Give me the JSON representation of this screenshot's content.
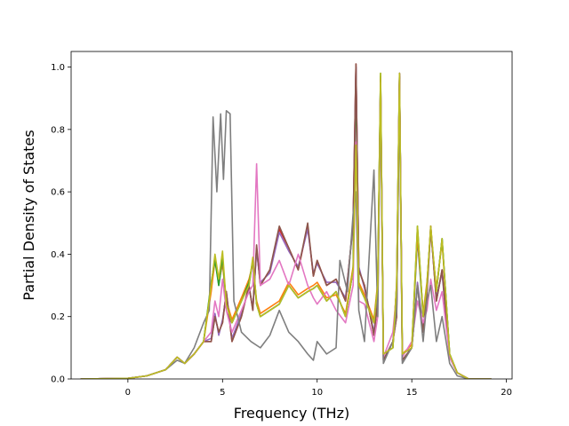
{
  "chart_data": {
    "type": "line",
    "title": "",
    "xlabel": "Frequency (THz)",
    "ylabel": "Partial Density of States",
    "xlim": [
      -3.0,
      20.3
    ],
    "ylim": [
      0.0,
      1.05
    ],
    "xticks": [
      0,
      5,
      10,
      15,
      20
    ],
    "yticks": [
      0.0,
      0.2,
      0.4,
      0.6,
      0.8,
      1.0
    ],
    "xtick_labels": [
      "0",
      "5",
      "10",
      "15",
      "20"
    ],
    "ytick_labels": [
      "0.0",
      "0.2",
      "0.4",
      "0.6",
      "0.8",
      "1.0"
    ],
    "grid": false,
    "legend": "none",
    "series": [
      {
        "color": "#1f77b4",
        "x": [
          -2.5,
          0,
          1,
          2,
          2.6,
          3,
          3.5,
          4,
          4.4,
          4.6,
          4.8,
          5,
          5.2,
          5.5,
          6,
          6.4,
          6.6,
          6.8,
          7,
          7.5,
          8,
          8.5,
          9,
          9.5,
          9.8,
          10,
          10.5,
          11,
          11.5,
          11.9,
          12.05,
          12.2,
          12.5,
          13,
          13.2,
          13.35,
          13.5,
          14,
          14.2,
          14.35,
          14.5,
          15,
          15.3,
          15.6,
          15.8,
          16,
          16.3,
          16.6,
          17,
          17.4,
          18,
          19.2
        ],
        "y": [
          0,
          0.002,
          0.01,
          0.03,
          0.07,
          0.05,
          0.08,
          0.12,
          0.3,
          0.39,
          0.3,
          0.38,
          0.24,
          0.18,
          0.25,
          0.3,
          0.38,
          0.24,
          0.2,
          0.22,
          0.24,
          0.3,
          0.26,
          0.28,
          0.29,
          0.3,
          0.25,
          0.28,
          0.2,
          0.35,
          1.0,
          0.3,
          0.26,
          0.18,
          0.3,
          0.97,
          0.08,
          0.1,
          0.3,
          0.98,
          0.08,
          0.1,
          0.45,
          0.2,
          0.3,
          0.48,
          0.28,
          0.45,
          0.08,
          0.02,
          0,
          0
        ]
      },
      {
        "color": "#ff7f0e",
        "x": [
          -2.5,
          0,
          1,
          2,
          2.6,
          3,
          3.5,
          4,
          4.4,
          4.6,
          4.8,
          5,
          5.2,
          5.5,
          6,
          6.4,
          6.6,
          6.8,
          7,
          7.5,
          8,
          8.5,
          9,
          9.5,
          9.8,
          10,
          10.5,
          11,
          11.5,
          11.9,
          12.05,
          12.2,
          12.5,
          13,
          13.2,
          13.35,
          13.5,
          14,
          14.2,
          14.35,
          14.5,
          15,
          15.3,
          15.6,
          15.8,
          16,
          16.3,
          16.6,
          17,
          17.4,
          18,
          19.2
        ],
        "y": [
          0,
          0.002,
          0.01,
          0.03,
          0.07,
          0.05,
          0.08,
          0.12,
          0.28,
          0.38,
          0.31,
          0.37,
          0.25,
          0.19,
          0.26,
          0.32,
          0.37,
          0.25,
          0.21,
          0.23,
          0.25,
          0.31,
          0.27,
          0.29,
          0.3,
          0.31,
          0.26,
          0.27,
          0.21,
          0.36,
          0.99,
          0.31,
          0.27,
          0.19,
          0.31,
          0.97,
          0.08,
          0.1,
          0.31,
          0.97,
          0.08,
          0.11,
          0.46,
          0.21,
          0.31,
          0.47,
          0.29,
          0.44,
          0.08,
          0.02,
          0,
          0
        ]
      },
      {
        "color": "#2ca02c",
        "x": [
          -2.5,
          0,
          1,
          2,
          2.6,
          3,
          3.5,
          4,
          4.4,
          4.6,
          4.8,
          5,
          5.2,
          5.5,
          6,
          6.4,
          6.6,
          6.8,
          7,
          7.5,
          8,
          8.5,
          9,
          9.5,
          9.8,
          10,
          10.5,
          11,
          11.5,
          11.9,
          12.05,
          12.2,
          12.5,
          13,
          13.2,
          13.35,
          13.5,
          14,
          14.2,
          14.35,
          14.5,
          15,
          15.3,
          15.6,
          15.8,
          16,
          16.3,
          16.6,
          17,
          17.4,
          18,
          19.2
        ],
        "y": [
          0,
          0.002,
          0.01,
          0.03,
          0.07,
          0.05,
          0.08,
          0.12,
          0.31,
          0.38,
          0.3,
          0.39,
          0.24,
          0.18,
          0.25,
          0.31,
          0.38,
          0.24,
          0.2,
          0.22,
          0.24,
          0.3,
          0.26,
          0.28,
          0.29,
          0.3,
          0.25,
          0.28,
          0.2,
          0.35,
          0.98,
          0.3,
          0.26,
          0.18,
          0.3,
          0.98,
          0.08,
          0.1,
          0.3,
          0.97,
          0.08,
          0.1,
          0.49,
          0.2,
          0.3,
          0.48,
          0.28,
          0.45,
          0.08,
          0.02,
          0,
          0
        ]
      },
      {
        "color": "#d62728",
        "x": [
          -2.5,
          0,
          1,
          2,
          2.6,
          3,
          3.5,
          4,
          4.4,
          4.6,
          4.8,
          5,
          5.2,
          5.5,
          6,
          6.4,
          6.6,
          6.8,
          7,
          7.5,
          8,
          8.5,
          9,
          9.5,
          9.8,
          10,
          10.5,
          11,
          11.5,
          11.9,
          12.05,
          12.2,
          12.5,
          13,
          13.2,
          13.35,
          13.5,
          14,
          14.2,
          14.35,
          14.5,
          15,
          15.3,
          15.6,
          15.8,
          16,
          16.3,
          16.6,
          17,
          17.4,
          18,
          19.2
        ],
        "y": [
          0,
          0.002,
          0.01,
          0.03,
          0.07,
          0.05,
          0.08,
          0.12,
          0.12,
          0.2,
          0.15,
          0.18,
          0.28,
          0.12,
          0.2,
          0.3,
          0.22,
          0.42,
          0.3,
          0.35,
          0.48,
          0.42,
          0.35,
          0.49,
          0.33,
          0.38,
          0.3,
          0.32,
          0.25,
          0.5,
          1.01,
          0.35,
          0.3,
          0.14,
          0.25,
          0.96,
          0.06,
          0.12,
          0.2,
          0.98,
          0.06,
          0.1,
          0.3,
          0.15,
          0.28,
          0.49,
          0.25,
          0.35,
          0.07,
          0.02,
          0,
          0
        ]
      },
      {
        "color": "#9467bd",
        "x": [
          -2.5,
          0,
          1,
          2,
          2.6,
          3,
          3.5,
          4,
          4.4,
          4.6,
          4.8,
          5,
          5.2,
          5.5,
          6,
          6.4,
          6.6,
          6.8,
          7,
          7.5,
          8,
          8.5,
          9,
          9.5,
          9.8,
          10,
          10.5,
          11,
          11.5,
          11.9,
          12.05,
          12.2,
          12.5,
          13,
          13.2,
          13.35,
          13.5,
          14,
          14.2,
          14.35,
          14.5,
          15,
          15.3,
          15.6,
          15.8,
          16,
          16.3,
          16.6,
          17,
          17.4,
          18,
          19.2
        ],
        "y": [
          0,
          0.002,
          0.01,
          0.03,
          0.07,
          0.05,
          0.08,
          0.12,
          0.13,
          0.21,
          0.14,
          0.19,
          0.27,
          0.13,
          0.21,
          0.29,
          0.23,
          0.41,
          0.31,
          0.34,
          0.47,
          0.41,
          0.36,
          0.48,
          0.34,
          0.37,
          0.31,
          0.31,
          0.26,
          0.49,
          1.0,
          0.36,
          0.29,
          0.15,
          0.26,
          0.95,
          0.06,
          0.12,
          0.21,
          0.97,
          0.06,
          0.1,
          0.31,
          0.16,
          0.27,
          0.48,
          0.26,
          0.34,
          0.07,
          0.02,
          0,
          0
        ]
      },
      {
        "color": "#8c564b",
        "x": [
          -2.5,
          0,
          1,
          2,
          2.6,
          3,
          3.5,
          4,
          4.4,
          4.6,
          4.8,
          5,
          5.2,
          5.5,
          6,
          6.4,
          6.6,
          6.8,
          7,
          7.5,
          8,
          8.5,
          9,
          9.5,
          9.8,
          10,
          10.5,
          11,
          11.5,
          11.9,
          12.05,
          12.2,
          12.5,
          13,
          13.2,
          13.35,
          13.5,
          14,
          14.2,
          14.35,
          14.5,
          15,
          15.3,
          15.6,
          15.8,
          16,
          16.3,
          16.6,
          17,
          17.4,
          18,
          19.2
        ],
        "y": [
          0,
          0.002,
          0.01,
          0.03,
          0.07,
          0.05,
          0.08,
          0.12,
          0.12,
          0.2,
          0.15,
          0.18,
          0.28,
          0.12,
          0.2,
          0.3,
          0.22,
          0.43,
          0.3,
          0.35,
          0.49,
          0.42,
          0.35,
          0.5,
          0.33,
          0.38,
          0.3,
          0.32,
          0.25,
          0.5,
          1.01,
          0.35,
          0.3,
          0.14,
          0.25,
          0.96,
          0.06,
          0.12,
          0.2,
          0.98,
          0.06,
          0.1,
          0.3,
          0.15,
          0.28,
          0.49,
          0.25,
          0.35,
          0.07,
          0.02,
          0,
          0
        ]
      },
      {
        "color": "#e377c2",
        "x": [
          -2.5,
          0,
          1,
          2,
          2.6,
          3,
          3.5,
          4,
          4.4,
          4.6,
          4.8,
          5,
          5.2,
          5.5,
          6,
          6.4,
          6.6,
          6.8,
          7,
          7.5,
          8,
          8.5,
          9,
          9.5,
          9.8,
          10,
          10.5,
          11,
          11.5,
          11.9,
          12.05,
          12.2,
          12.5,
          13,
          13.2,
          13.35,
          13.5,
          14,
          14.2,
          14.35,
          14.5,
          15,
          15.3,
          15.6,
          15.8,
          16,
          16.3,
          16.6,
          17,
          17.4,
          18,
          19.2
        ],
        "y": [
          0,
          0.002,
          0.01,
          0.03,
          0.07,
          0.05,
          0.08,
          0.12,
          0.15,
          0.25,
          0.2,
          0.32,
          0.22,
          0.15,
          0.22,
          0.28,
          0.3,
          0.69,
          0.3,
          0.32,
          0.38,
          0.3,
          0.4,
          0.3,
          0.26,
          0.24,
          0.28,
          0.22,
          0.18,
          0.3,
          0.76,
          0.25,
          0.24,
          0.12,
          0.2,
          0.95,
          0.07,
          0.15,
          0.28,
          0.96,
          0.07,
          0.12,
          0.25,
          0.18,
          0.22,
          0.32,
          0.22,
          0.28,
          0.07,
          0.02,
          0,
          0
        ]
      },
      {
        "color": "#7f7f7f",
        "x": [
          -2.5,
          0,
          1,
          2,
          2.6,
          3,
          3.5,
          4,
          4.3,
          4.5,
          4.7,
          4.9,
          5.05,
          5.2,
          5.4,
          5.6,
          6,
          6.5,
          7,
          7.5,
          8,
          8.5,
          9,
          9.5,
          9.8,
          10,
          10.5,
          11,
          11.2,
          11.6,
          11.9,
          12.05,
          12.2,
          12.5,
          12.8,
          13,
          13.2,
          13.35,
          13.5,
          14,
          14.2,
          14.35,
          14.5,
          15,
          15.3,
          15.6,
          15.8,
          16,
          16.3,
          16.6,
          17,
          17.4,
          18,
          19.2
        ],
        "y": [
          0,
          0.002,
          0.01,
          0.03,
          0.06,
          0.05,
          0.1,
          0.18,
          0.22,
          0.84,
          0.6,
          0.85,
          0.64,
          0.86,
          0.85,
          0.25,
          0.15,
          0.12,
          0.1,
          0.14,
          0.22,
          0.15,
          0.12,
          0.08,
          0.06,
          0.12,
          0.08,
          0.1,
          0.38,
          0.28,
          0.53,
          0.6,
          0.22,
          0.12,
          0.45,
          0.67,
          0.2,
          0.94,
          0.05,
          0.12,
          0.22,
          0.9,
          0.05,
          0.1,
          0.3,
          0.12,
          0.25,
          0.3,
          0.12,
          0.2,
          0.05,
          0.01,
          0,
          0
        ]
      },
      {
        "color": "#bcbd22",
        "x": [
          -2.5,
          0,
          1,
          2,
          2.6,
          3,
          3.5,
          4,
          4.4,
          4.6,
          4.8,
          5,
          5.2,
          5.5,
          6,
          6.4,
          6.6,
          6.8,
          7,
          7.5,
          8,
          8.5,
          9,
          9.5,
          9.8,
          10,
          10.5,
          11,
          11.5,
          11.9,
          12.05,
          12.2,
          12.5,
          13,
          13.2,
          13.35,
          13.5,
          14,
          14.2,
          14.35,
          14.5,
          15,
          15.3,
          15.6,
          15.8,
          16,
          16.3,
          16.6,
          17,
          17.4,
          18,
          19.2
        ],
        "y": [
          0,
          0.002,
          0.01,
          0.03,
          0.07,
          0.05,
          0.08,
          0.12,
          0.3,
          0.4,
          0.32,
          0.41,
          0.24,
          0.18,
          0.25,
          0.3,
          0.39,
          0.24,
          0.2,
          0.22,
          0.24,
          0.3,
          0.26,
          0.28,
          0.29,
          0.3,
          0.25,
          0.28,
          0.2,
          0.35,
          0.75,
          0.3,
          0.26,
          0.18,
          0.3,
          0.98,
          0.08,
          0.1,
          0.3,
          0.98,
          0.08,
          0.1,
          0.49,
          0.2,
          0.3,
          0.49,
          0.28,
          0.45,
          0.08,
          0.02,
          0,
          0
        ]
      }
    ]
  }
}
